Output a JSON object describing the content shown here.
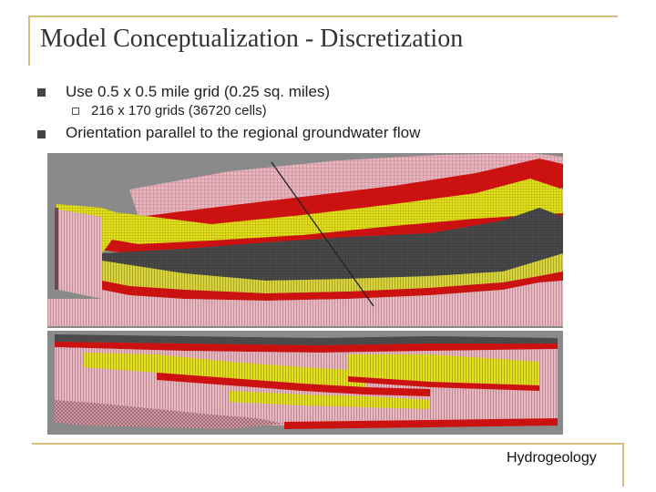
{
  "slide": {
    "title": "Model Conceptualization - Discretization",
    "bullets": [
      {
        "text": "Use 0.5 x 0.5 mile grid (0.25 sq. miles)"
      },
      {
        "text": "216 x 170 grids (36720 cells)",
        "level": 2
      },
      {
        "text": "Orientation parallel to the regional groundwater flow"
      }
    ],
    "footer": "Hydrogeology"
  },
  "colors": {
    "accent_rule": "#d4c07a",
    "layer_red": "#cc1111",
    "layer_yellow": "#e6e21a",
    "layer_pink": "#e8b3bd",
    "layer_dark": "#444444"
  }
}
